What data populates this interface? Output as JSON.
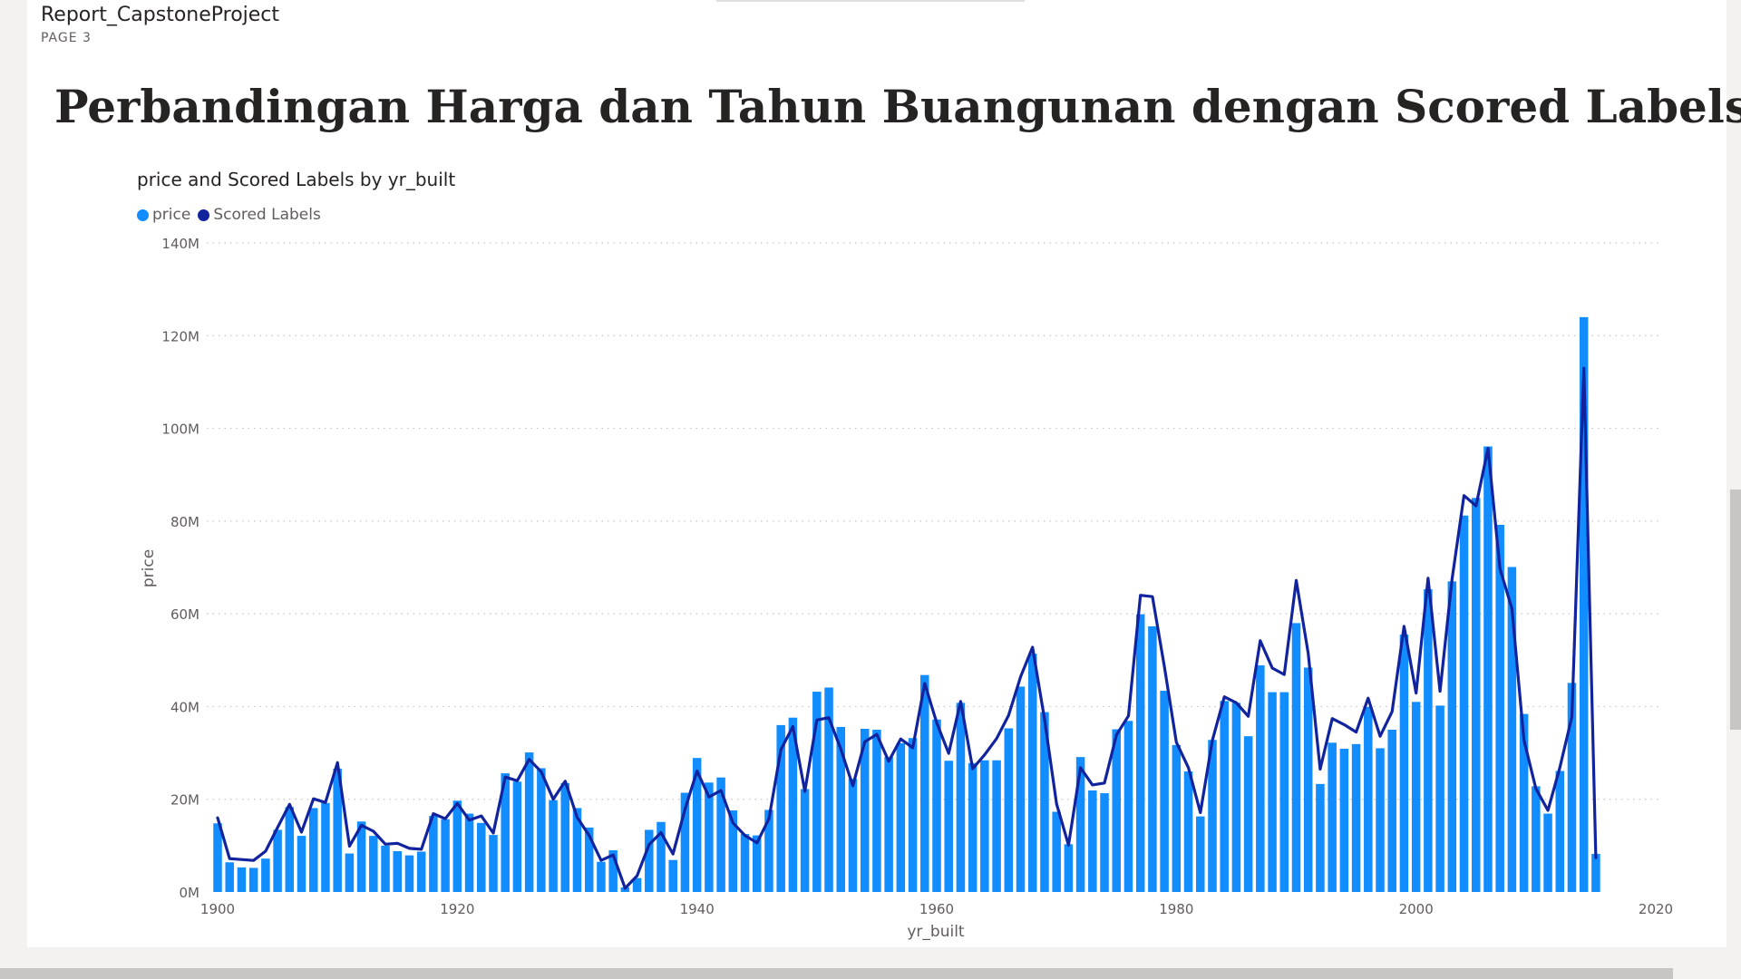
{
  "report": {
    "name": "Report_CapstoneProject",
    "page": "PAGE 3"
  },
  "page_title": "Perbandingan Harga dan Tahun Buangunan dengan Scored Labels",
  "colors": {
    "price": "#118dff",
    "scored": "#12239e",
    "grid": "#c8c6c4",
    "text": "#605e5c"
  },
  "chart_data": {
    "type": "bar",
    "title": "price and Scored Labels by yr_built",
    "xlabel": "yr_built",
    "ylabel": "price",
    "xlim": [
      1900,
      2020
    ],
    "ylim": [
      0,
      140000000
    ],
    "y_ticks": [
      "0M",
      "20M",
      "40M",
      "60M",
      "80M",
      "100M",
      "120M",
      "140M"
    ],
    "x_ticks": [
      "1900",
      "1920",
      "1940",
      "1960",
      "1980",
      "2000",
      "2020"
    ],
    "legend_position": "top-left",
    "grid": true,
    "x": [
      1900,
      1901,
      1902,
      1903,
      1904,
      1905,
      1906,
      1907,
      1908,
      1909,
      1910,
      1911,
      1912,
      1913,
      1914,
      1915,
      1916,
      1917,
      1918,
      1919,
      1920,
      1921,
      1922,
      1923,
      1924,
      1925,
      1926,
      1927,
      1928,
      1929,
      1930,
      1931,
      1932,
      1933,
      1934,
      1935,
      1936,
      1937,
      1938,
      1939,
      1940,
      1941,
      1942,
      1943,
      1944,
      1945,
      1946,
      1947,
      1948,
      1949,
      1950,
      1951,
      1952,
      1953,
      1954,
      1955,
      1956,
      1957,
      1958,
      1959,
      1960,
      1961,
      1962,
      1963,
      1964,
      1965,
      1966,
      1967,
      1968,
      1969,
      1970,
      1971,
      1972,
      1973,
      1974,
      1975,
      1976,
      1977,
      1978,
      1979,
      1980,
      1981,
      1982,
      1983,
      1984,
      1985,
      1986,
      1987,
      1988,
      1989,
      1990,
      1991,
      1992,
      1993,
      1994,
      1995,
      1996,
      1997,
      1998,
      1999,
      2000,
      2001,
      2002,
      2003,
      2004,
      2005,
      2006,
      2007,
      2008,
      2009,
      2010,
      2011,
      2012,
      2013,
      2014,
      2015
    ],
    "series": [
      {
        "name": "price",
        "kind": "bar",
        "values": [
          14.8,
          6.4,
          5.3,
          5.2,
          7.2,
          13.4,
          18.3,
          12.1,
          18.1,
          19.2,
          26.6,
          8.3,
          15.2,
          12.1,
          10.0,
          8.8,
          7.9,
          8.7,
          16.4,
          15.7,
          19.7,
          16.9,
          14.9,
          12.3,
          25.6,
          23.8,
          30.1,
          26.7,
          19.8,
          23.5,
          18.1,
          13.9,
          6.5,
          9.0,
          1.0,
          3.0,
          13.4,
          15.1,
          6.9,
          21.4,
          28.9,
          23.6,
          24.7,
          17.6,
          12.5,
          12.2,
          17.7,
          36.0,
          37.6,
          22.2,
          43.2,
          44.1,
          35.6,
          24.4,
          35.2,
          35.0,
          29.1,
          32.1,
          33.2,
          46.8,
          37.2,
          28.3,
          40.8,
          27.8,
          28.4,
          28.4,
          35.3,
          44.3,
          51.4,
          38.8,
          17.3,
          10.3,
          29.1,
          21.9,
          21.3,
          35.1,
          36.9,
          59.9,
          57.3,
          43.4,
          31.7,
          26.0,
          16.3,
          32.8,
          41.2,
          40.8,
          33.6,
          48.9,
          43.1,
          43.1,
          58.0,
          48.4,
          23.3,
          32.2,
          30.9,
          31.9,
          39.9,
          31.0,
          35.0,
          55.5,
          41.0,
          65.3,
          40.2,
          67.0,
          81.2,
          85.0,
          96.1,
          79.2,
          70.1,
          38.4,
          22.8,
          16.9,
          26.1,
          45.1,
          124.0,
          8.2
        ]
      },
      {
        "name": "Scored Labels",
        "kind": "line",
        "values": [
          16.0,
          7.2,
          7.0,
          6.8,
          8.8,
          13.9,
          18.9,
          12.9,
          20.1,
          19.3,
          27.9,
          9.9,
          14.4,
          13.1,
          10.3,
          10.5,
          9.4,
          9.2,
          16.9,
          15.8,
          19.1,
          15.5,
          16.4,
          12.7,
          24.8,
          24.0,
          28.6,
          25.9,
          20.0,
          23.9,
          16.1,
          12.2,
          6.8,
          8.0,
          0.8,
          3.5,
          10.2,
          12.8,
          8.2,
          17.9,
          26.1,
          20.5,
          21.9,
          14.9,
          12.2,
          10.6,
          15.8,
          30.7,
          35.7,
          21.7,
          37.1,
          37.6,
          30.8,
          22.9,
          32.4,
          34.0,
          28.2,
          33.0,
          31.1,
          45.0,
          36.5,
          29.9,
          41.1,
          26.6,
          29.6,
          33.1,
          38.1,
          46.4,
          52.8,
          37.3,
          19.0,
          10.1,
          26.8,
          23.1,
          23.5,
          33.9,
          38.0,
          64.0,
          63.7,
          48.6,
          32.3,
          26.8,
          17.1,
          32.7,
          42.1,
          40.8,
          37.9,
          54.2,
          48.3,
          46.9,
          67.2,
          51.5,
          26.5,
          37.4,
          36.1,
          34.5,
          41.8,
          33.6,
          38.9,
          57.3,
          42.9,
          67.7,
          43.3,
          67.4,
          85.5,
          83.3,
          95.7,
          69.7,
          61.1,
          32.8,
          22.3,
          17.6,
          26.9,
          37.8,
          113.0,
          7.4
        ]
      }
    ]
  }
}
